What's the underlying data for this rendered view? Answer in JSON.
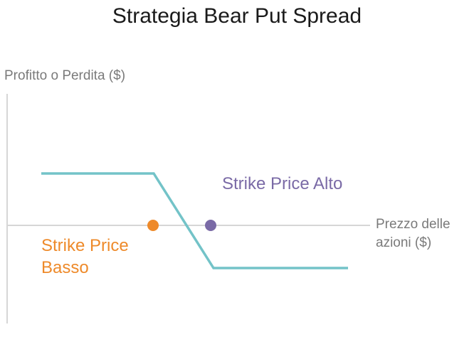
{
  "title": "Strategia Bear Put Spread",
  "y_axis_label": "Profitto o Perdita ($)",
  "x_axis_label": "Prezzo delle azioni ($)",
  "strike_high_label": "Strike Price Alto",
  "strike_low_label": "Strike Price Basso",
  "colors": {
    "payoff_line": "#73c3c8",
    "strike_high": "#7a6aa6",
    "strike_low": "#ee8a2a",
    "axis": "#d6d6d6",
    "axis_text": "#7a7a7a"
  }
}
